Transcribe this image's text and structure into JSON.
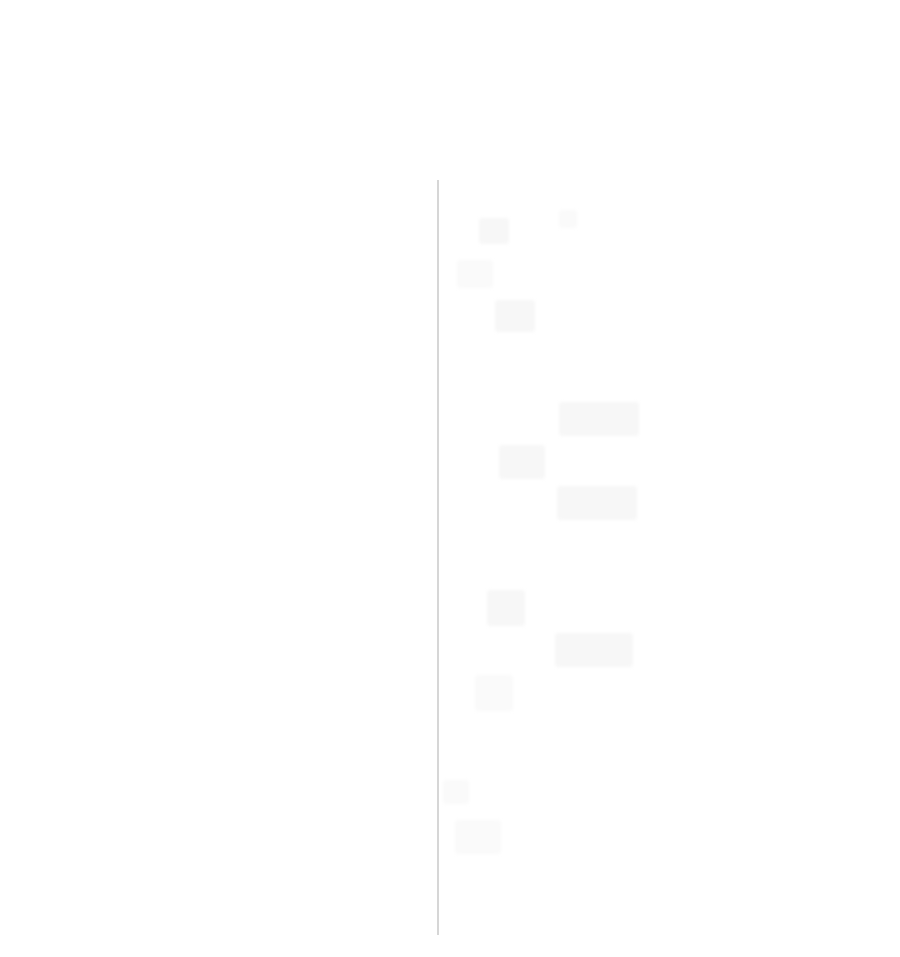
{
  "colors": {
    "background": "#ffffff",
    "divider": "#d6d6d6",
    "placeholder": "#f7f7f7"
  },
  "right_pane": {
    "placeholder_blocks": 12
  }
}
